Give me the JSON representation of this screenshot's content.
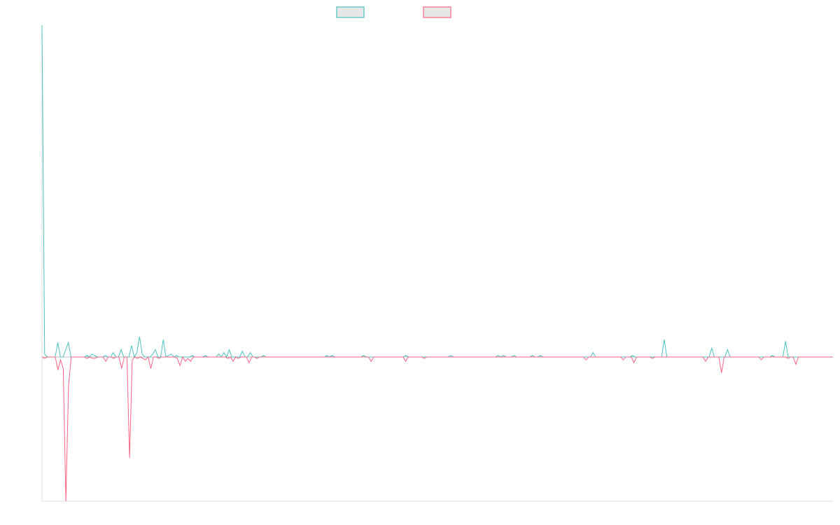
{
  "chart_data": {
    "type": "line",
    "title": "",
    "xlabel": "",
    "ylabel": "",
    "grid": false,
    "legend_position": "top-center",
    "xlim": [
      0,
      280
    ],
    "ylim": [
      -100,
      230
    ],
    "colors": {
      "series_a": "#4bc0c0",
      "series_b": "#ff6384"
    },
    "series": [
      {
        "color": "#4bc0c0",
        "values": [
          230,
          2,
          0,
          0,
          0,
          0,
          10,
          0,
          0,
          5,
          10,
          0,
          0,
          0,
          0,
          0,
          0,
          1,
          0,
          2,
          1,
          0,
          0,
          0,
          1,
          0,
          0,
          3,
          0,
          0,
          5,
          0,
          0,
          0,
          8,
          0,
          3,
          14,
          2,
          0,
          0,
          0,
          2,
          5,
          0,
          0,
          12,
          0,
          1,
          2,
          0,
          1,
          0,
          0,
          0,
          0,
          0,
          1,
          0,
          0,
          0,
          0,
          1,
          0,
          0,
          0,
          0,
          2,
          0,
          3,
          0,
          5,
          0,
          0,
          0,
          0,
          4,
          0,
          0,
          3,
          0,
          0,
          0,
          0,
          1,
          0,
          0,
          0,
          0,
          0,
          0,
          0,
          0,
          0,
          0,
          0,
          0,
          0,
          0,
          0,
          0,
          0,
          0,
          0,
          0,
          0,
          0,
          0,
          1,
          0,
          1,
          0,
          0,
          0,
          0,
          0,
          0,
          0,
          0,
          0,
          0,
          0,
          1,
          0,
          0,
          0,
          0,
          0,
          0,
          0,
          0,
          0,
          0,
          0,
          0,
          0,
          0,
          0,
          1,
          0,
          0,
          0,
          0,
          0,
          0,
          0,
          0,
          0,
          0,
          0,
          0,
          0,
          0,
          0,
          0,
          1,
          0,
          0,
          0,
          0,
          0,
          0,
          0,
          0,
          0,
          0,
          0,
          0,
          0,
          0,
          0,
          0,
          0,
          1,
          0,
          1,
          0,
          0,
          0,
          1,
          0,
          0,
          0,
          0,
          0,
          0,
          1,
          0,
          0,
          1,
          0,
          0,
          0,
          0,
          0,
          0,
          0,
          0,
          0,
          0,
          0,
          0,
          0,
          0,
          0,
          0,
          0,
          0,
          0,
          3,
          0,
          0,
          0,
          0,
          0,
          0,
          0,
          0,
          0,
          0,
          0,
          0,
          0,
          0,
          1,
          0,
          0,
          0,
          0,
          0,
          0,
          0,
          0,
          0,
          0,
          0,
          12,
          0,
          0,
          0,
          0,
          0,
          0,
          0,
          0,
          0,
          0,
          0,
          0,
          0,
          0,
          0,
          0,
          0,
          6,
          0,
          0,
          0,
          0,
          0,
          5,
          0,
          0,
          0,
          0,
          0,
          0,
          0,
          0,
          0,
          0,
          0,
          0,
          0,
          0,
          0,
          0,
          1,
          0,
          0,
          0,
          0,
          11,
          0,
          0,
          0,
          0,
          0,
          0,
          0,
          0,
          0,
          0,
          0,
          0,
          0,
          0,
          0,
          0,
          0,
          0
        ]
      },
      {
        "color": "#ff6384",
        "values": [
          0,
          -1,
          0,
          0,
          0,
          0,
          -9,
          -2,
          -8,
          -100,
          -20,
          0,
          0,
          0,
          0,
          0,
          0,
          -1,
          0,
          -1,
          -1,
          0,
          0,
          0,
          -3,
          0,
          0,
          -1,
          0,
          0,
          -8,
          0,
          0,
          -70,
          -2,
          0,
          -1,
          0,
          -1,
          -2,
          0,
          -8,
          0,
          0,
          -1,
          0,
          0,
          0,
          0,
          0,
          0,
          -1,
          -6,
          0,
          -3,
          -1,
          -3,
          0,
          0,
          0,
          0,
          0,
          0,
          0,
          0,
          0,
          0,
          0,
          0,
          0,
          -1,
          0,
          -3,
          0,
          -1,
          0,
          0,
          0,
          -4,
          0,
          0,
          -1,
          0,
          0,
          0,
          0,
          0,
          0,
          0,
          0,
          0,
          0,
          0,
          0,
          0,
          0,
          0,
          0,
          0,
          0,
          0,
          0,
          0,
          0,
          0,
          0,
          0,
          0,
          0,
          0,
          0,
          0,
          0,
          0,
          0,
          0,
          0,
          0,
          0,
          0,
          0,
          0,
          0,
          0,
          -3,
          0,
          0,
          0,
          0,
          0,
          0,
          0,
          0,
          0,
          0,
          0,
          0,
          -3,
          0,
          0,
          0,
          0,
          0,
          0,
          -1,
          0,
          0,
          0,
          0,
          0,
          0,
          0,
          0,
          0,
          0,
          0,
          0,
          0,
          0,
          0,
          0,
          0,
          0,
          0,
          0,
          0,
          0,
          0,
          0,
          0,
          0,
          0,
          0,
          0,
          0,
          0,
          0,
          0,
          0,
          0,
          0,
          0,
          0,
          0,
          0,
          0,
          0,
          0,
          0,
          0,
          0,
          0,
          0,
          0,
          0,
          0,
          0,
          0,
          0,
          0,
          0,
          0,
          0,
          0,
          0,
          -2,
          0,
          0,
          0,
          0,
          0,
          0,
          0,
          0,
          0,
          0,
          0,
          0,
          0,
          -2,
          0,
          0,
          0,
          -4,
          0,
          0,
          0,
          0,
          0,
          0,
          -1,
          0,
          0,
          0,
          0,
          0,
          0,
          0,
          0,
          0,
          0,
          0,
          0,
          0,
          0,
          0,
          0,
          0,
          0,
          0,
          -3,
          0,
          0,
          0,
          0,
          0,
          -11,
          0,
          0,
          0,
          0,
          0,
          0,
          0,
          0,
          0,
          0,
          0,
          0,
          0,
          0,
          -2,
          0,
          0,
          0,
          0,
          0,
          0,
          0,
          0,
          0,
          -1,
          0,
          0,
          -5,
          0,
          0,
          0,
          0,
          0,
          0,
          0,
          0,
          0,
          0,
          0,
          0,
          0,
          0
        ]
      }
    ]
  }
}
